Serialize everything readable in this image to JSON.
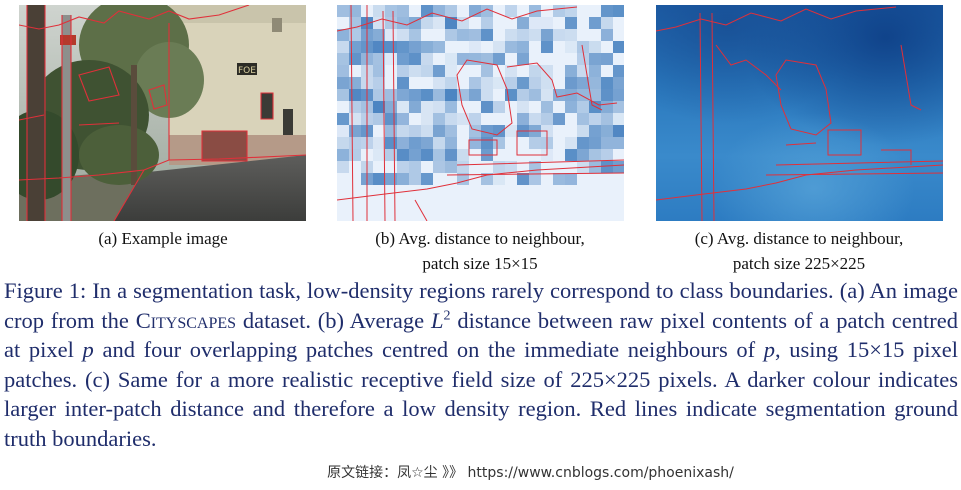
{
  "figure": {
    "panels": [
      {
        "id": "a",
        "caption": "(a) Example image"
      },
      {
        "id": "b",
        "caption_line1": "(b) Avg. distance to neighbour,",
        "caption_line2": "patch size 15×15"
      },
      {
        "id": "c",
        "caption_line1": "(c) Avg. distance to neighbour,",
        "caption_line2": "patch size 225×225"
      }
    ],
    "image_text": {
      "sign": "FOE"
    },
    "boundary_color": "#e0303a",
    "caption": {
      "label": "Figure 1:",
      "sentence1": "In a segmentation task, low-density regions rarely correspond to class boundaries.",
      "a_prefix": "(a) An image crop from the",
      "dataset_name": "Cityscapes",
      "a_suffix": "dataset.",
      "b_prefix": "(b) Average",
      "l_symbol": "L",
      "l_power": "2",
      "b_mid": "distance between raw pixel contents of a patch centred at pixel",
      "p_symbol": "p",
      "b_mid2": "and four overlapping patches centred on the immediate neighbours of",
      "b_end": ", using 15×15 pixel patches.",
      "c_text": "(c) Same for a more realistic receptive field size of 225×225 pixels. A darker colour indicates larger inter-patch distance and therefore a low density region. Red lines indicate segmentation ground truth boundaries."
    },
    "watermark": "原文链接：凤☆尘 》》 https://www.cnblogs.com/phoenixash/"
  }
}
